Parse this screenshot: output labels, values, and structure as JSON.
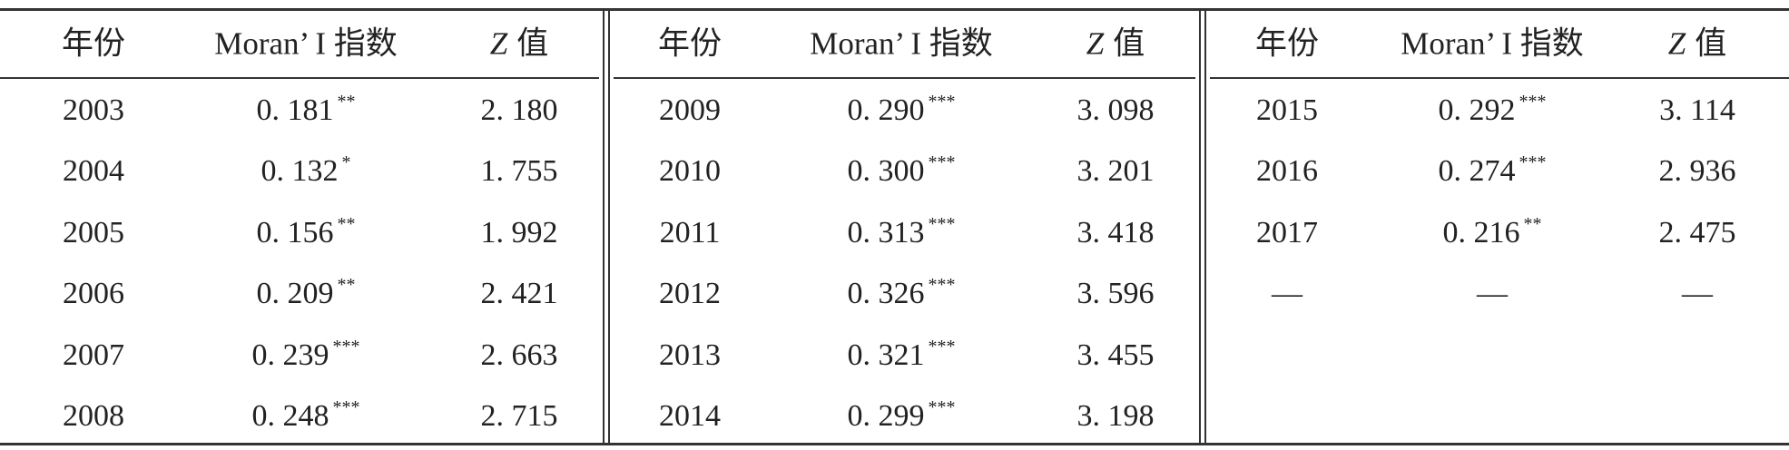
{
  "panels": [
    {
      "header": [
        [
          "年份"
        ],
        [
          "Moran’ I 指数"
        ],
        [
          "Z",
          "值"
        ]
      ],
      "rows": [
        [
          "2003",
          {
            "value": "0. 181",
            "sig": "**"
          },
          "2. 180"
        ],
        [
          "2004",
          {
            "value": "0. 132",
            "sig": "*"
          },
          "1. 755"
        ],
        [
          "2005",
          {
            "value": "0. 156",
            "sig": "**"
          },
          "1. 992"
        ],
        [
          "2006",
          {
            "value": "0. 209",
            "sig": "**"
          },
          "2. 421"
        ],
        [
          "2007",
          {
            "value": "0. 239",
            "sig": "***"
          },
          "2. 663"
        ],
        [
          "2008",
          {
            "value": "0. 248",
            "sig": "***"
          },
          "2. 715"
        ]
      ]
    },
    {
      "header": [
        [
          "年份"
        ],
        [
          "Moran’ I 指数"
        ],
        [
          "Z",
          "值"
        ]
      ],
      "rows": [
        [
          "2009",
          {
            "value": "0. 290",
            "sig": "***"
          },
          "3. 098"
        ],
        [
          "2010",
          {
            "value": "0. 300",
            "sig": "***"
          },
          "3. 201"
        ],
        [
          "2011",
          {
            "value": "0. 313",
            "sig": "***"
          },
          "3. 418"
        ],
        [
          "2012",
          {
            "value": "0. 326",
            "sig": "***"
          },
          "3. 596"
        ],
        [
          "2013",
          {
            "value": "0. 321",
            "sig": "***"
          },
          "3. 455"
        ],
        [
          "2014",
          {
            "value": "0. 299",
            "sig": "***"
          },
          "3. 198"
        ]
      ]
    },
    {
      "header": [
        [
          "年份"
        ],
        [
          "Moran’ I 指数"
        ],
        [
          "Z",
          "值"
        ]
      ],
      "rows": [
        [
          "2015",
          {
            "value": "0. 292",
            "sig": "***"
          },
          "3. 114"
        ],
        [
          "2016",
          {
            "value": "0. 274",
            "sig": "***"
          },
          "2. 936"
        ],
        [
          "2017",
          {
            "value": "0. 216",
            "sig": "**"
          },
          "2. 475"
        ],
        [
          "—",
          "—",
          "—"
        ]
      ]
    }
  ]
}
